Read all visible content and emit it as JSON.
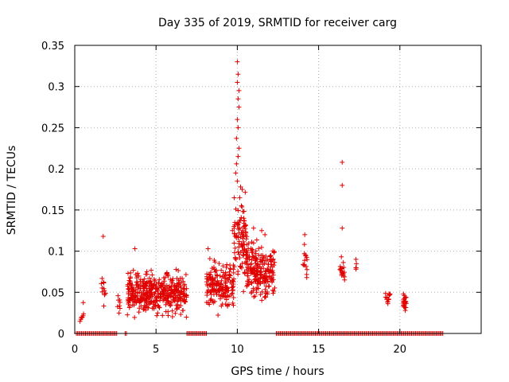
{
  "chart_data": {
    "type": "scatter",
    "title": "Day 335 of 2019, SRMTID for receiver carg",
    "xlabel": "GPS time / hours",
    "ylabel": "SRMTID / TECUs",
    "xlim": [
      0,
      25
    ],
    "ylim": [
      0,
      0.35
    ],
    "xticks": [
      0,
      5,
      10,
      15,
      20
    ],
    "xtick_labels": [
      "0",
      "5",
      "10",
      "15",
      "20"
    ],
    "yticks": [
      0,
      0.05,
      0.1,
      0.15,
      0.2,
      0.25,
      0.3,
      0.35
    ],
    "ytick_labels": [
      "0",
      "0.05",
      "0.1",
      "0.15",
      "0.2",
      "0.25",
      "0.3",
      "0.35"
    ],
    "grid": true,
    "marker": "+",
    "color": "#e00000",
    "clusters": [
      {
        "x0": 0.3,
        "x1": 0.6,
        "count": 8,
        "ymin": 0.0,
        "ymax": 0.05,
        "seed": 1
      },
      {
        "x0": 1.6,
        "x1": 1.9,
        "count": 12,
        "ymin": 0.02,
        "ymax": 0.09,
        "seed": 2
      },
      {
        "x0": 2.6,
        "x1": 2.8,
        "count": 8,
        "ymin": 0.02,
        "ymax": 0.05,
        "seed": 3
      },
      {
        "x0": 3.2,
        "x1": 6.9,
        "count": 420,
        "ymin": 0.013,
        "ymax": 0.085,
        "seed": 4
      },
      {
        "x0": 8.1,
        "x1": 9.8,
        "count": 180,
        "ymin": 0.02,
        "ymax": 0.1,
        "seed": 5
      },
      {
        "x0": 9.8,
        "x1": 10.6,
        "count": 90,
        "ymin": 0.04,
        "ymax": 0.18,
        "seed": 6
      },
      {
        "x0": 10.5,
        "x1": 12.3,
        "count": 220,
        "ymin": 0.03,
        "ymax": 0.12,
        "seed": 7
      },
      {
        "x0": 14.0,
        "x1": 14.3,
        "count": 14,
        "ymin": 0.055,
        "ymax": 0.12,
        "seed": 8
      },
      {
        "x0": 16.3,
        "x1": 16.6,
        "count": 18,
        "ymin": 0.06,
        "ymax": 0.09,
        "seed": 9
      },
      {
        "x0": 17.2,
        "x1": 17.4,
        "count": 4,
        "ymin": 0.07,
        "ymax": 0.09,
        "seed": 10
      },
      {
        "x0": 19.1,
        "x1": 19.4,
        "count": 14,
        "ymin": 0.03,
        "ymax": 0.062,
        "seed": 11
      },
      {
        "x0": 20.2,
        "x1": 20.4,
        "count": 24,
        "ymin": 0.02,
        "ymax": 0.055,
        "seed": 12
      }
    ],
    "spikes": [
      [
        10.0,
        0.33
      ],
      [
        10.05,
        0.315
      ],
      [
        10.0,
        0.305
      ],
      [
        10.1,
        0.295
      ],
      [
        10.05,
        0.285
      ],
      [
        10.1,
        0.275
      ],
      [
        10.0,
        0.26
      ],
      [
        10.05,
        0.25
      ],
      [
        9.95,
        0.237
      ],
      [
        10.1,
        0.225
      ],
      [
        10.05,
        0.215
      ],
      [
        9.95,
        0.206
      ],
      [
        9.9,
        0.195
      ],
      [
        10.0,
        0.185
      ],
      [
        10.2,
        0.178
      ],
      [
        10.3,
        0.175
      ],
      [
        10.15,
        0.165
      ],
      [
        10.25,
        0.155
      ],
      [
        10.35,
        0.148
      ],
      [
        10.4,
        0.14
      ],
      [
        9.8,
        0.13
      ],
      [
        9.7,
        0.125
      ],
      [
        10.5,
        0.132
      ],
      [
        11.7,
        0.12
      ],
      [
        11.5,
        0.125
      ],
      [
        11.0,
        0.128
      ],
      [
        16.45,
        0.208
      ],
      [
        16.45,
        0.18
      ],
      [
        16.45,
        0.128
      ],
      [
        1.75,
        0.118
      ],
      [
        3.7,
        0.103
      ],
      [
        14.15,
        0.12
      ],
      [
        8.2,
        0.103
      ],
      [
        16.4,
        0.093
      ],
      [
        17.3,
        0.09
      ]
    ],
    "zero_segments": [
      [
        0.1,
        2.6
      ],
      [
        3.1,
        3.2
      ],
      [
        6.9,
        8.1
      ],
      [
        12.4,
        22.7
      ]
    ]
  }
}
